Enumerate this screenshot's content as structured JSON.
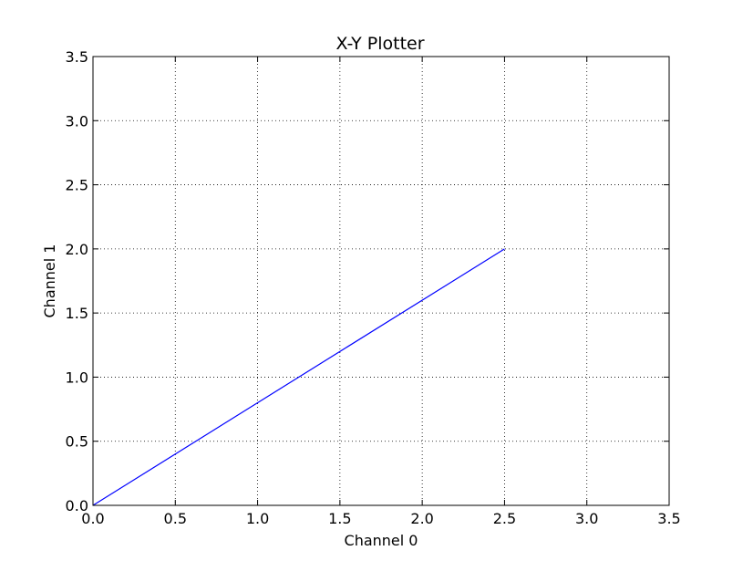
{
  "chart_data": {
    "type": "line",
    "title": "X-Y Plotter",
    "xlabel": "Channel 0",
    "ylabel": "Channel 1",
    "xlim": [
      0,
      3.5
    ],
    "ylim": [
      0,
      3.5
    ],
    "xticks": [
      "0.0",
      "0.5",
      "1.0",
      "1.5",
      "2.0",
      "2.5",
      "3.0",
      "3.5"
    ],
    "yticks": [
      "0.0",
      "0.5",
      "1.0",
      "1.5",
      "2.0",
      "2.5",
      "3.0",
      "3.5"
    ],
    "grid": true,
    "grid_style": "dotted",
    "series": [
      {
        "color": "#0000ff",
        "x": [
          0.0,
          2.5
        ],
        "y": [
          0.0,
          2.0
        ]
      }
    ]
  }
}
